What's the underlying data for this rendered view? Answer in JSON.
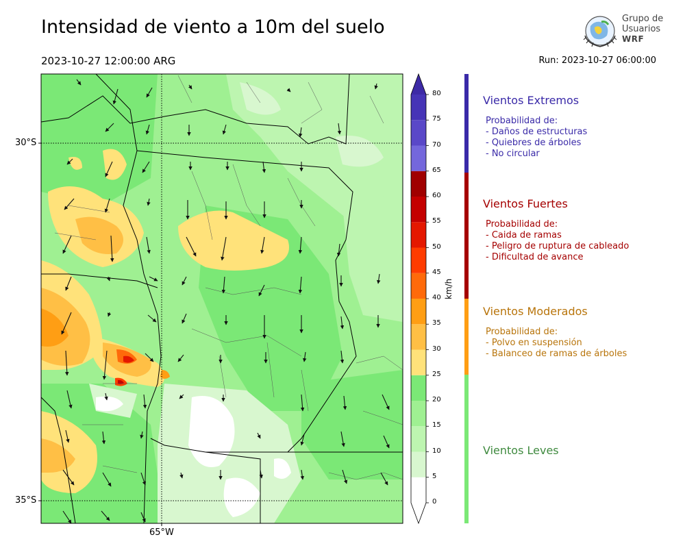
{
  "header": {
    "title": "Intensidad de viento a 10m del suelo",
    "valid_time": "2023-10-27 12:00:00 ARG",
    "run_time": "Run: 2023-10-27 06:00:00"
  },
  "logo": {
    "line1": "Grupo de",
    "line2": "Usuarios",
    "line3": "WRF"
  },
  "map": {
    "lat_labels": [
      "30°S",
      "35°S"
    ],
    "lon_labels": [
      "65°W"
    ]
  },
  "colorbar": {
    "unit": "km/h",
    "ticks": [
      "80",
      "75",
      "70",
      "65",
      "60",
      "55",
      "50",
      "45",
      "40",
      "35",
      "30",
      "25",
      "20",
      "15",
      "10",
      "5",
      "0"
    ],
    "levels": [
      {
        "from": 0,
        "to": 5,
        "color": "#ffffff"
      },
      {
        "from": 5,
        "to": 10,
        "color": "#d8f7cf"
      },
      {
        "from": 10,
        "to": 15,
        "color": "#bdf5b0"
      },
      {
        "from": 15,
        "to": 20,
        "color": "#9ff092"
      },
      {
        "from": 20,
        "to": 25,
        "color": "#7be876"
      },
      {
        "from": 25,
        "to": 30,
        "color": "#ffe27a"
      },
      {
        "from": 30,
        "to": 35,
        "color": "#ffbf45"
      },
      {
        "from": 35,
        "to": 40,
        "color": "#ff9e14"
      },
      {
        "from": 40,
        "to": 45,
        "color": "#ff6a0a"
      },
      {
        "from": 45,
        "to": 50,
        "color": "#ff3c00"
      },
      {
        "from": 50,
        "to": 55,
        "color": "#e41800"
      },
      {
        "from": 55,
        "to": 60,
        "color": "#c40000"
      },
      {
        "from": 60,
        "to": 65,
        "color": "#a00000"
      },
      {
        "from": 65,
        "to": 70,
        "color": "#7467dc"
      },
      {
        "from": 70,
        "to": 75,
        "color": "#5a48c8"
      },
      {
        "from": 75,
        "to": 80,
        "color": "#4634b6"
      }
    ],
    "extend_max_color": "#3d2aa6",
    "extend_min_color": "#ffffff"
  },
  "categories": [
    {
      "title": "Vientos Extremos",
      "heading": "Probabilidad de:",
      "items": [
        "- Daños de estructuras",
        "- Quiebres de árboles",
        "- No circular"
      ],
      "color": "#3a2aa8"
    },
    {
      "title": "Vientos Fuertes",
      "heading": "Probabilidad de:",
      "items": [
        "- Caida de ramas",
        "- Peligro de ruptura de cableado",
        "- Dificultad de avance"
      ],
      "color": "#a50000"
    },
    {
      "title": "Vientos Moderados",
      "heading": "Probabilidad de:",
      "items": [
        "- Polvo en suspensión",
        "- Balanceo de ramas de árboles"
      ],
      "color": "#b8740a"
    },
    {
      "title": "Vientos Leves",
      "heading": "",
      "items": [],
      "color": "#3f8a3f"
    }
  ],
  "legend_bar_colors": {
    "extreme": "#3a2aa8",
    "strong": "#a50000",
    "moderate": "#ff9e14",
    "light": "#7be876"
  }
}
